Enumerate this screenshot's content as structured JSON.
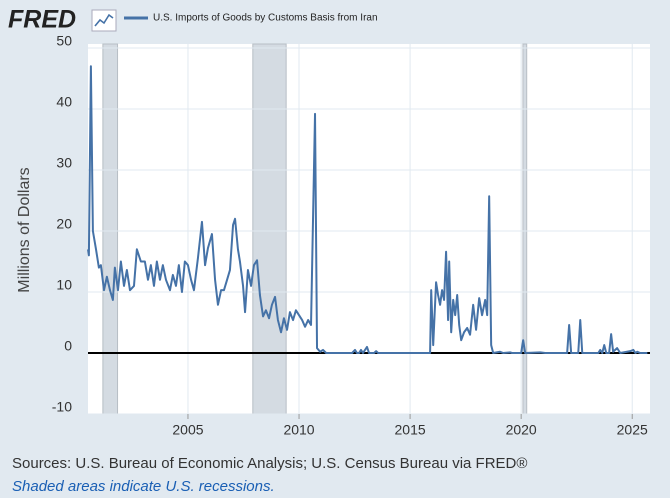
{
  "chart_data": {
    "type": "line",
    "logo": "FRED",
    "title": "U.S. Imports of Goods by Customs Basis from Iran",
    "ylabel": "Millions of Dollars",
    "source": "Sources: U.S. Bureau of Economic Analysis; U.S. Census Bureau via FRED®",
    "note": "Shaded areas indicate U.S. recessions.",
    "xlim": [
      2000.5,
      2025.8
    ],
    "xticks": [
      2005,
      2010,
      2015,
      2020,
      2025
    ],
    "ylim": [
      -10,
      50
    ],
    "yticks": [
      -10,
      0,
      10,
      20,
      30,
      40,
      50
    ],
    "grid": true,
    "recessions": [
      [
        2001.17,
        2001.83
      ],
      [
        2007.92,
        2009.42
      ],
      [
        2020.08,
        2020.25
      ]
    ],
    "series": [
      {
        "name": "U.S. Imports of Goods by Customs Basis from Iran",
        "color": "#4572a7",
        "x": [
          2000.5,
          2000.54,
          2000.63,
          2000.72,
          2000.86,
          2000.99,
          2001.08,
          2001.22,
          2001.35,
          2001.49,
          2001.62,
          2001.71,
          2001.85,
          2001.98,
          2002.12,
          2002.25,
          2002.39,
          2002.57,
          2002.7,
          2002.88,
          2003.06,
          2003.2,
          2003.33,
          2003.47,
          2003.6,
          2003.74,
          2003.87,
          2004.01,
          2004.19,
          2004.32,
          2004.46,
          2004.59,
          2004.73,
          2004.86,
          2005.0,
          2005.14,
          2005.27,
          2005.45,
          2005.63,
          2005.77,
          2005.9,
          2006.08,
          2006.22,
          2006.35,
          2006.49,
          2006.62,
          2006.76,
          2006.89,
          2007.03,
          2007.12,
          2007.25,
          2007.34,
          2007.48,
          2007.57,
          2007.7,
          2007.84,
          2007.97,
          2008.11,
          2008.24,
          2008.38,
          2008.51,
          2008.65,
          2008.78,
          2008.92,
          2009.05,
          2009.19,
          2009.32,
          2009.46,
          2009.59,
          2009.73,
          2009.86,
          2010.0,
          2010.14,
          2010.27,
          2010.41,
          2010.54,
          2010.72,
          2010.81,
          2010.95,
          2011.08,
          2011.22,
          2011.85,
          2012.39,
          2012.52,
          2012.61,
          2012.7,
          2012.79,
          2012.88,
          2013.06,
          2013.15,
          2013.38,
          2013.47,
          2013.56,
          2015.9,
          2015.95,
          2016.04,
          2016.17,
          2016.26,
          2016.35,
          2016.44,
          2016.53,
          2016.62,
          2016.71,
          2016.76,
          2016.85,
          2016.94,
          2017.03,
          2017.12,
          2017.21,
          2017.3,
          2017.43,
          2017.57,
          2017.7,
          2017.84,
          2017.97,
          2018.11,
          2018.24,
          2018.38,
          2018.47,
          2018.56,
          2018.65,
          2018.74,
          2019.05,
          2019.19,
          2019.5,
          2019.59,
          2020.0,
          2020.09,
          2020.18,
          2020.86,
          2021.08,
          2022.07,
          2022.16,
          2022.25,
          2022.57,
          2022.66,
          2022.75,
          2023.47,
          2023.56,
          2023.65,
          2023.74,
          2023.83,
          2023.96,
          2024.05,
          2024.14,
          2024.32,
          2024.46,
          2024.91,
          2025.05,
          2025.14,
          2025.23,
          2025.36,
          2025.68
        ],
        "values": [
          17,
          16,
          47,
          20,
          17,
          14,
          14.4,
          10.3,
          12.5,
          10.3,
          8.7,
          14,
          10.3,
          15,
          11,
          13.6,
          10.3,
          11,
          17,
          15,
          15,
          12,
          14.4,
          11,
          15,
          12,
          14.4,
          12,
          10.3,
          12.8,
          11,
          14.4,
          10,
          15,
          14.4,
          12,
          10.3,
          15.6,
          21.5,
          14.4,
          17.2,
          19.5,
          12,
          7.9,
          10.3,
          10.3,
          12,
          13.6,
          21,
          22,
          17,
          15,
          11,
          6.7,
          13.6,
          11,
          14.4,
          15.2,
          9.5,
          6,
          7,
          5.7,
          7.9,
          9.2,
          5.4,
          3.4,
          5.7,
          3.8,
          6.7,
          5.4,
          7,
          6.2,
          5.4,
          4.3,
          5.4,
          4.6,
          39.2,
          0.8,
          0.2,
          0.5,
          0,
          0,
          0,
          0.5,
          0,
          0,
          0.5,
          0,
          1,
          0,
          0,
          0.3,
          0,
          0,
          10.3,
          1.3,
          11.6,
          9.5,
          7.9,
          10.3,
          8.7,
          16.6,
          5.4,
          15,
          3.4,
          8.7,
          6.2,
          9.5,
          4.6,
          2.1,
          3.4,
          4.1,
          3,
          7.9,
          3.8,
          9,
          6.2,
          8.7,
          6.2,
          25.7,
          1.3,
          0,
          0.2,
          0,
          0.1,
          0,
          0,
          2.1,
          0,
          0.1,
          0,
          0,
          4.6,
          0,
          0,
          5.4,
          0,
          0,
          0.5,
          0,
          1.3,
          0,
          0,
          3.1,
          0.2,
          0.8,
          0,
          0.3,
          0.5,
          0,
          0.2,
          0,
          0
        ]
      }
    ]
  }
}
